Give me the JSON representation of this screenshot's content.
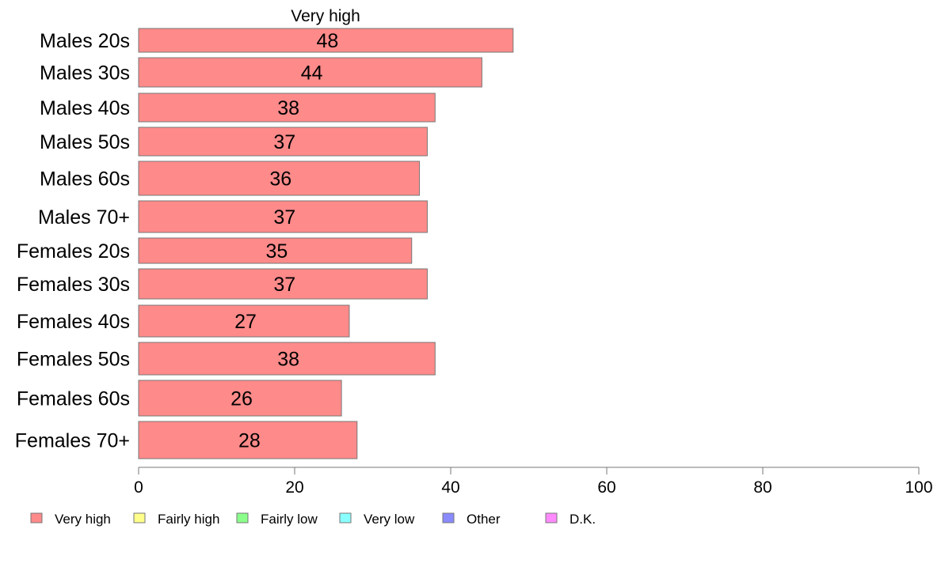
{
  "chart_data": {
    "type": "bar",
    "orientation": "horizontal",
    "series_title": "Very high",
    "categories": [
      "Males 20s",
      "Males 30s",
      "Males 40s",
      "Males 50s",
      "Males 60s",
      "Males 70+",
      "Females 20s",
      "Females 30s",
      "Females 40s",
      "Females 50s",
      "Females 60s",
      "Females 70+"
    ],
    "series": [
      {
        "name": "Very high",
        "color": "#ff8a8a",
        "values": [
          48,
          44,
          38,
          37,
          36,
          37,
          35,
          37,
          27,
          38,
          26,
          28
        ]
      }
    ],
    "xlim": [
      0,
      100
    ],
    "xticks": [
      0,
      20,
      40,
      60,
      80,
      100
    ],
    "grid": false,
    "legend_position": "bottom",
    "legend": [
      {
        "label": "Very high",
        "color": "#ff8a8a"
      },
      {
        "label": "Fairly high",
        "color": "#ffff8a"
      },
      {
        "label": "Fairly low",
        "color": "#8aff8a"
      },
      {
        "label": "Very low",
        "color": "#8affff"
      },
      {
        "label": "Other",
        "color": "#8a8aff"
      },
      {
        "label": "D.K.",
        "color": "#ff8aff"
      }
    ]
  }
}
